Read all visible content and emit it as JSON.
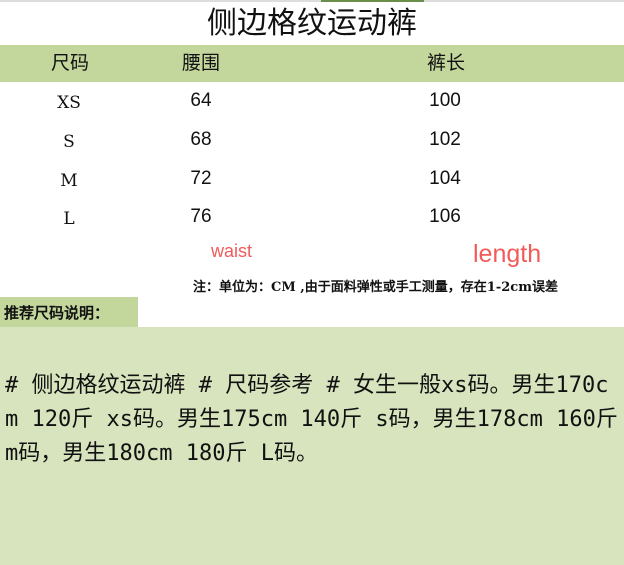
{
  "title": "侧边格纹运动裤",
  "headers": [
    "尺码",
    "腰围",
    "裤长"
  ],
  "rows": [
    [
      "XS",
      "64",
      "100"
    ],
    [
      "S",
      "68",
      "102"
    ],
    [
      "M",
      "72",
      "104"
    ],
    [
      "L",
      "76",
      "106"
    ]
  ],
  "labels": {
    "waist": "waist",
    "length": "length"
  },
  "note": "注：单位为：CM ,由于面料弹性或手工测量，存在1-2cm误差",
  "recommend_title": "推荐尺码说明：",
  "recommend_text": "# 侧边格纹运动裤 # 尺码参考 # 女生一般xs码。男生170cm 120斤 xs码。男生175cm 140斤 s码，男生178cm 160斤 m码，男生180cm 180斤 L码。",
  "colors": {
    "header_bg": "#c3d69b",
    "box_bg": "#d7e4bd",
    "label_red": "#f25a5a"
  }
}
